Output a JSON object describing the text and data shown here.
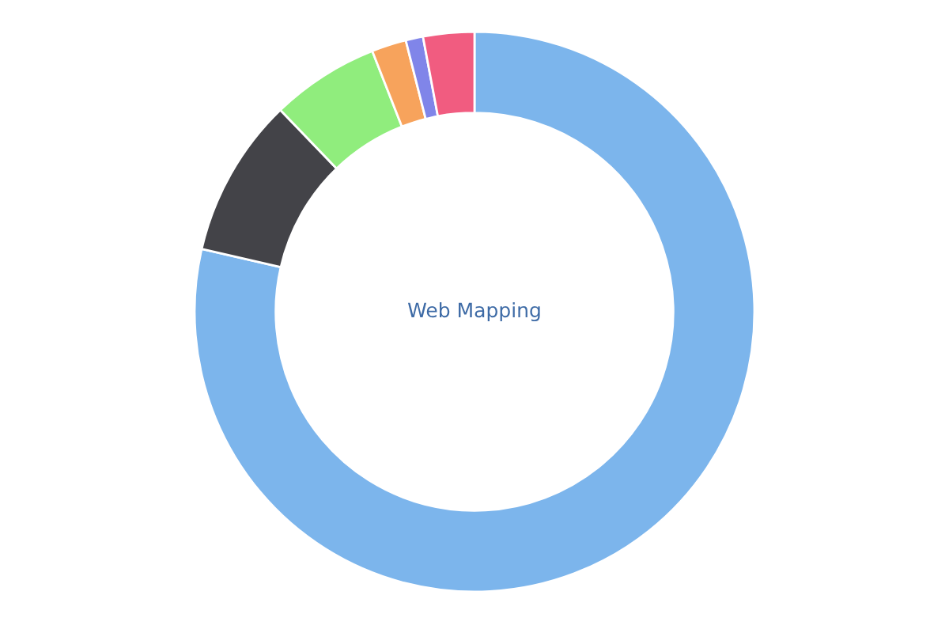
{
  "chart_data": {
    "type": "donut",
    "title": "Web Mapping",
    "categories": [
      null,
      null,
      null,
      null,
      null,
      null
    ],
    "values": [
      78.6,
      9.2,
      6.25,
      2.0,
      1.0,
      2.95
    ],
    "colors": [
      "#7cb5ec",
      "#434348",
      "#90ed7d",
      "#f7a35c",
      "#8085e9",
      "#f15c80"
    ]
  }
}
